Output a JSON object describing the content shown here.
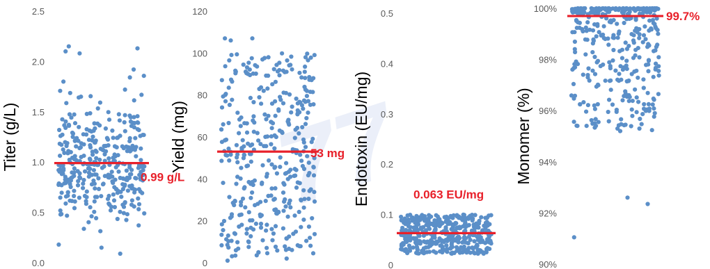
{
  "watermark": "77",
  "colors": {
    "points": "#5b8fc8",
    "mean_line": "#e8202a",
    "annotation": "#e8202a"
  },
  "chart_data": [
    {
      "type": "scatter",
      "ylabel": "Titer (g/L)",
      "ylim": [
        0,
        2.5
      ],
      "yticks": [
        "0.0",
        "0.5",
        "1.0",
        "1.5",
        "2.0",
        "2.5"
      ],
      "mean": 0.99,
      "annotation": "0.99 g/L",
      "n": 360,
      "spread": 0.32,
      "dist": "normal",
      "clip": [
        0.08,
        2.15
      ],
      "extra": [
        2.1,
        2.08,
        2.13,
        1.92,
        1.8,
        1.72,
        0.09,
        0.15,
        0.18
      ]
    },
    {
      "type": "scatter",
      "ylabel": "Yield (mg)",
      "ylim": [
        0,
        120
      ],
      "yticks": [
        "0",
        "20",
        "40",
        "60",
        "80",
        "100",
        "120"
      ],
      "mean": 53,
      "annotation": "53 mg",
      "n": 380,
      "range": [
        3,
        100
      ],
      "dist": "uniform",
      "extra": [
        107,
        107,
        106,
        1,
        2,
        5
      ]
    },
    {
      "type": "scatter",
      "ylabel": "Endotoxin (EU/mg)",
      "ylim": [
        0,
        0.5
      ],
      "yticks": [
        "0",
        "0.1",
        "0.2",
        "0.3",
        "0.4",
        "0.5"
      ],
      "mean": 0.063,
      "annotation": "0.063 EU/mg",
      "n": 420,
      "range": [
        0.022,
        0.1
      ],
      "dist": "uniform",
      "extra": []
    },
    {
      "type": "scatter",
      "ylabel": "Monomer (%)",
      "ylim": [
        90,
        100
      ],
      "yticks": [
        "90%",
        "92%",
        "94%",
        "96%",
        "98%",
        "100%"
      ],
      "mean": 99.7,
      "annotation": "99.7%",
      "n": 360,
      "dist": "skew-high",
      "range": [
        95.2,
        100
      ],
      "extra": [
        92.6,
        92.35,
        91.05,
        95.3,
        95.2
      ]
    }
  ]
}
